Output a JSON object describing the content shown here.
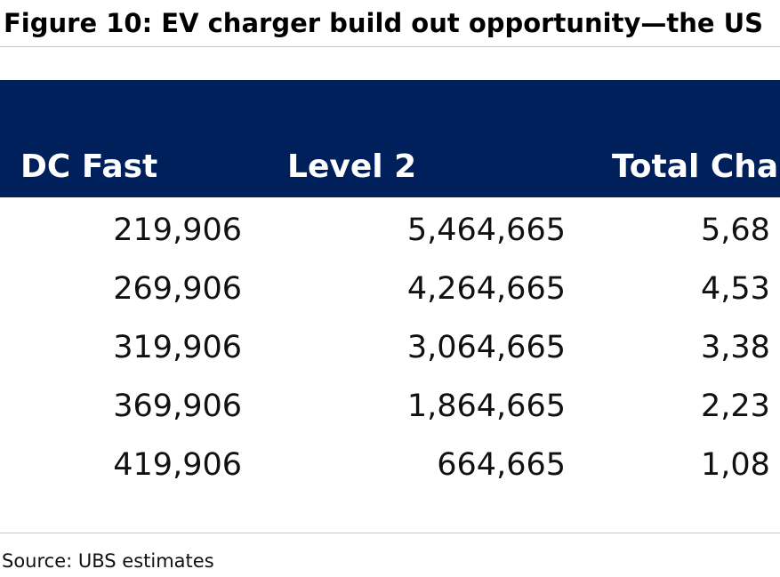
{
  "title": "Figure 10: EV charger build out opportunity—the US",
  "source": "Source: UBS estimates",
  "chart_data": {
    "type": "table",
    "columns": [
      "DC Fast",
      "Level 2",
      "Total Cha"
    ],
    "rows": [
      [
        "219,906",
        "5,464,665",
        "5,68"
      ],
      [
        "269,906",
        "4,264,665",
        "4,53"
      ],
      [
        "319,906",
        "3,064,665",
        "3,38"
      ],
      [
        "369,906",
        "1,864,665",
        "2,23"
      ],
      [
        "419,906",
        "664,665",
        "1,08"
      ]
    ]
  },
  "colors": {
    "header_bg": "#00205b",
    "header_text": "#ffffff",
    "rule": "#c8c8c8"
  }
}
